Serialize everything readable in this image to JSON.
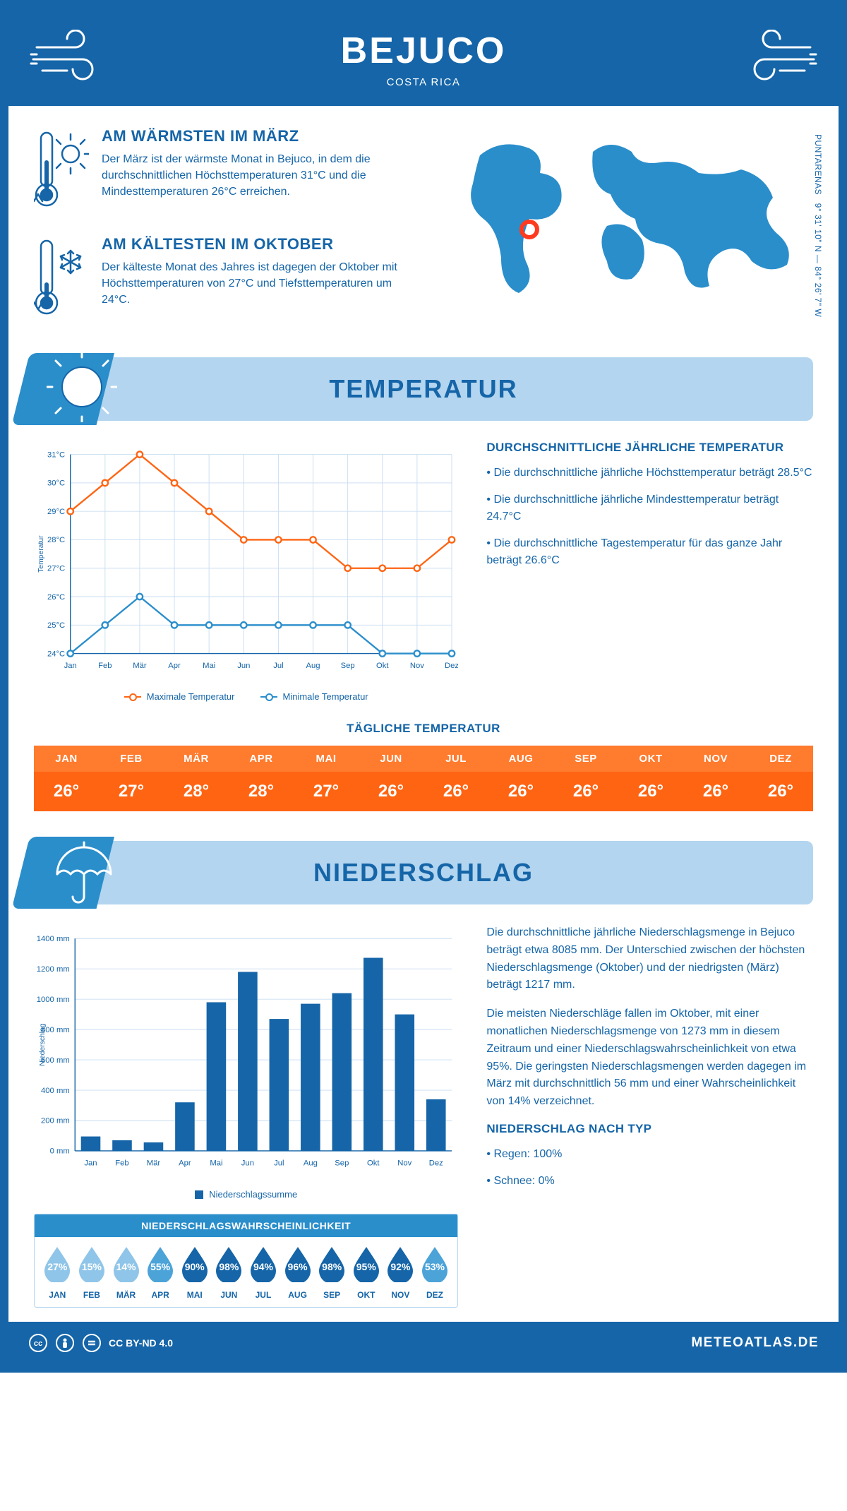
{
  "colors": {
    "primary": "#1565a8",
    "primary_light": "#b3d5ef",
    "accent_blue": "#2a8ecb",
    "orange_header": "#ff7b2e",
    "orange_body": "#ff6412",
    "line_max": "#ff6412",
    "line_min": "#2a8ecb",
    "bar_fill": "#1565a8",
    "grid": "#c9def0",
    "white": "#ffffff"
  },
  "header": {
    "title": "BEJUCO",
    "subtitle": "COSTA RICA"
  },
  "intro": {
    "warm": {
      "title": "AM WÄRMSTEN IM MÄRZ",
      "text": "Der März ist der wärmste Monat in Bejuco, in dem die durchschnittlichen Höchsttemperaturen 31°C und die Mindesttemperaturen 26°C erreichen."
    },
    "cold": {
      "title": "AM KÄLTESTEN IM OKTOBER",
      "text": "Der kälteste Monat des Jahres ist dagegen der Oktober mit Höchsttemperaturen von 27°C und Tiefsttemperaturen um 24°C."
    },
    "coords_line1": "PUNTARENAS",
    "coords_line2": "9° 31' 10\" N — 84° 26' 7\" W"
  },
  "temperature": {
    "section_title": "TEMPERATUR",
    "chart": {
      "type": "line",
      "months": [
        "Jan",
        "Feb",
        "Mär",
        "Apr",
        "Mai",
        "Jun",
        "Jul",
        "Aug",
        "Sep",
        "Okt",
        "Nov",
        "Dez"
      ],
      "max": [
        29,
        30,
        31,
        30,
        29,
        28,
        28,
        28,
        27,
        27,
        27,
        28
      ],
      "min": [
        24,
        25,
        26,
        25,
        25,
        25,
        25,
        25,
        25,
        24,
        24,
        24
      ],
      "ylim": [
        24,
        31
      ],
      "ytick_step": 1,
      "ylabel": "Temperatur",
      "series_labels": {
        "max": "Maximale Temperatur",
        "min": "Minimale Temperatur"
      }
    },
    "facts_title": "DURCHSCHNITTLICHE JÄHRLICHE TEMPERATUR",
    "facts": [
      "Die durchschnittliche jährliche Höchsttemperatur beträgt 28.5°C",
      "Die durchschnittliche jährliche Mindesttemperatur beträgt 24.7°C",
      "Die durchschnittliche Tagestemperatur für das ganze Jahr beträgt 26.6°C"
    ],
    "daily_title": "TÄGLICHE TEMPERATUR",
    "daily_months": [
      "JAN",
      "FEB",
      "MÄR",
      "APR",
      "MAI",
      "JUN",
      "JUL",
      "AUG",
      "SEP",
      "OKT",
      "NOV",
      "DEZ"
    ],
    "daily_values": [
      "26°",
      "27°",
      "28°",
      "28°",
      "27°",
      "26°",
      "26°",
      "26°",
      "26°",
      "26°",
      "26°",
      "26°"
    ]
  },
  "precip": {
    "section_title": "NIEDERSCHLAG",
    "chart": {
      "type": "bar",
      "months": [
        "Jan",
        "Feb",
        "Mär",
        "Apr",
        "Mai",
        "Jun",
        "Jul",
        "Aug",
        "Sep",
        "Okt",
        "Nov",
        "Dez"
      ],
      "values": [
        95,
        70,
        56,
        320,
        980,
        1180,
        870,
        970,
        1040,
        1273,
        900,
        340
      ],
      "ylim": [
        0,
        1400
      ],
      "ytick_step": 200,
      "ylabel": "Niederschlag",
      "series_label": "Niederschlagssumme"
    },
    "text_p1": "Die durchschnittliche jährliche Niederschlagsmenge in Bejuco beträgt etwa 8085 mm. Der Unterschied zwischen der höchsten Niederschlagsmenge (Oktober) und der niedrigsten (März) beträgt 1217 mm.",
    "text_p2": "Die meisten Niederschläge fallen im Oktober, mit einer monatlichen Niederschlagsmenge von 1273 mm in diesem Zeitraum und einer Niederschlagswahrscheinlichkeit von etwa 95%. Die geringsten Niederschlagsmengen werden dagegen im März mit durchschnittlich 56 mm und einer Wahrscheinlichkeit von 14% verzeichnet.",
    "type_title": "NIEDERSCHLAG NACH TYP",
    "type_items": [
      "Regen: 100%",
      "Schnee: 0%"
    ],
    "prob_title": "NIEDERSCHLAGSWAHRSCHEINLICHKEIT",
    "prob": {
      "months": [
        "JAN",
        "FEB",
        "MÄR",
        "APR",
        "MAI",
        "JUN",
        "JUL",
        "AUG",
        "SEP",
        "OKT",
        "NOV",
        "DEZ"
      ],
      "pct": [
        "27%",
        "15%",
        "14%",
        "55%",
        "90%",
        "98%",
        "94%",
        "96%",
        "98%",
        "95%",
        "92%",
        "53%"
      ],
      "values": [
        27,
        15,
        14,
        55,
        90,
        98,
        94,
        96,
        98,
        95,
        92,
        53
      ]
    }
  },
  "footer": {
    "license": "CC BY-ND 4.0",
    "brand": "METEOATLAS.DE"
  }
}
